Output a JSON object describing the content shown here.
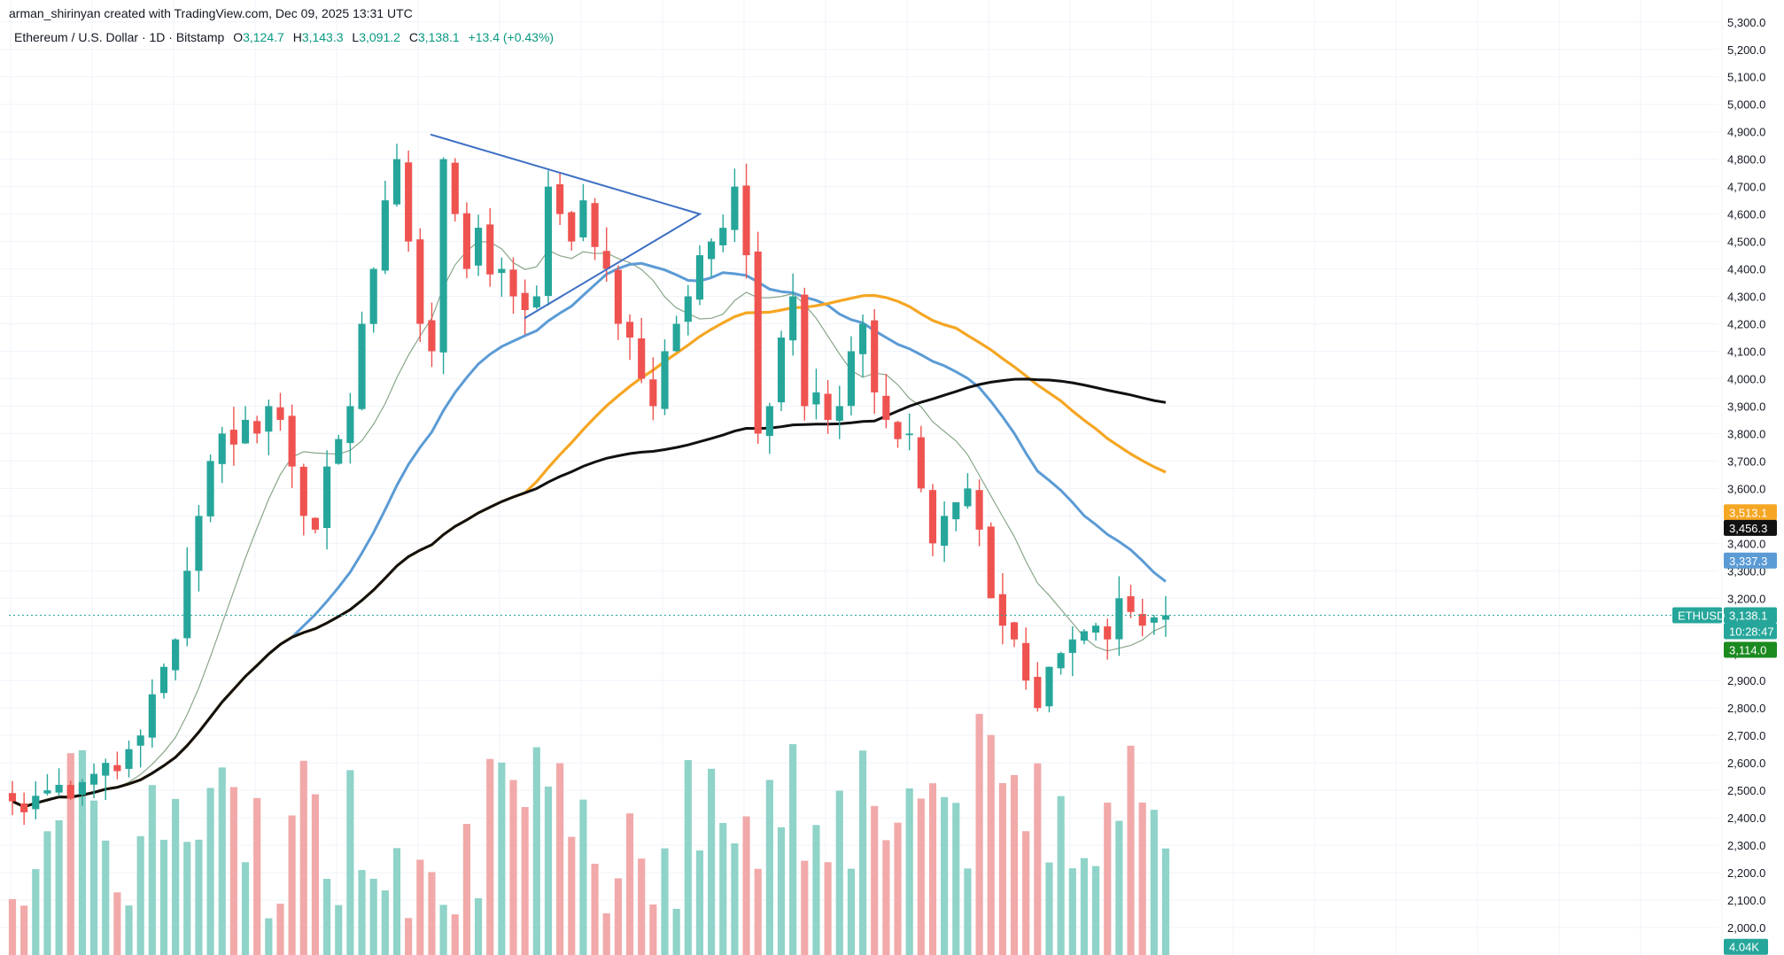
{
  "header": {
    "credit": "arman_shirinyan created with TradingView.com, Dec 09, 2025 13:31 UTC"
  },
  "legend": {
    "symbol": "Ethereum / U.S. Dollar · 1D · Bitstamp",
    "open_label": "O",
    "open": "3,124.7",
    "high_label": "H",
    "high": "3,143.3",
    "low_label": "L",
    "low": "3,091.2",
    "close_label": "C",
    "close": "3,138.1",
    "change": "+13.4 (+0.43%)"
  },
  "colors": {
    "up": "#26a69a",
    "down": "#ef5350",
    "up_volume": "#8fd3c9",
    "down_volume": "#f2a9a9",
    "ma_fast": "#8aa68a",
    "ma_blue": "#5b9bd5",
    "ma_orange": "#f5a623",
    "ma_black": "#111111",
    "trendline": "#3d6fc4",
    "price_line": "#26a69a"
  },
  "chart_data": {
    "type": "candlestick",
    "title": "Ethereum / U.S. Dollar · 1D · Bitstamp",
    "xlabel": "",
    "ylabel": "",
    "ylim": [
      1900,
      5380
    ],
    "y_ticks": [
      "2,000.0",
      "2,100.0",
      "2,200.0",
      "2,300.0",
      "2,400.0",
      "2,500.0",
      "2,600.0",
      "2,700.0",
      "2,800.0",
      "2,900.0",
      "3,000.0",
      "3,100.0",
      "3,200.0",
      "3,300.0",
      "3,400.0",
      "3,500.0",
      "3,600.0",
      "3,700.0",
      "3,800.0",
      "3,900.0",
      "4,000.0",
      "4,100.0",
      "4,200.0",
      "4,300.0",
      "4,400.0",
      "4,500.0",
      "4,600.0",
      "4,700.0",
      "4,800.0",
      "4,900.0",
      "5,000.0",
      "5,100.0",
      "5,200.0",
      "5,300.0"
    ],
    "grid": true,
    "candles_close_path": [
      2460,
      2420,
      2480,
      2500,
      2520,
      2470,
      2530,
      2560,
      2600,
      2570,
      2650,
      2700,
      2850,
      2950,
      3050,
      3300,
      3500,
      3700,
      3800,
      3760,
      3850,
      3800,
      3900,
      3850,
      3680,
      3500,
      3450,
      3680,
      3780,
      3900,
      4200,
      4400,
      4650,
      4800,
      4500,
      4200,
      4100,
      4800,
      4600,
      4400,
      4550,
      4380,
      4400,
      4300,
      4250,
      4300,
      4700,
      4600,
      4500,
      4650,
      4480,
      4400,
      4200,
      4150,
      4000,
      3900,
      4100,
      4200,
      4300,
      4450,
      4500,
      4550,
      4700,
      4450,
      3800,
      3900,
      4150,
      4300,
      3900,
      3950,
      3850,
      3900,
      4100,
      4200,
      3950,
      3850,
      3780,
      3800,
      3600,
      3400,
      3500,
      3550,
      3600,
      3450,
      3200,
      3100,
      3050,
      2900,
      2800,
      2950,
      3000,
      3050,
      3080,
      3100,
      3050,
      3200,
      3150,
      3100,
      3130,
      3138.1
    ],
    "volume_unit": "K",
    "series": [
      {
        "name": "",
        "type": "moving-average",
        "color": "ma_fast"
      },
      {
        "name": "",
        "type": "moving-average",
        "color": "ma_blue",
        "last": 3337.3
      },
      {
        "name": "",
        "type": "moving-average",
        "color": "ma_orange",
        "last": 3513.1
      },
      {
        "name": "",
        "type": "moving-average",
        "color": "ma_black",
        "last": 3456.3
      }
    ],
    "price_labels": {
      "orange_ma": "3,513.1",
      "black_ma": "3,456.3",
      "blue_ma": "3,337.3",
      "symbol_tag": "ETHUSD",
      "last_price": "3,138.1",
      "countdown": "10:28:47",
      "low_tag": "3,114.0",
      "volume_last": "4.04K"
    },
    "annotations": [
      "symmetrical triangle drawn from ~4,900 high converging near 4,600"
    ]
  }
}
